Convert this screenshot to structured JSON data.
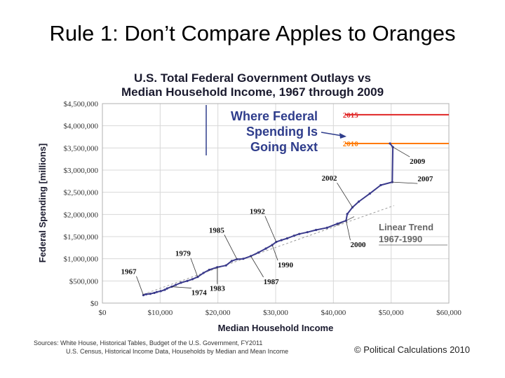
{
  "slide": {
    "title": "Rule 1: Don’t Compare Apples to Oranges"
  },
  "chart_data": {
    "type": "line",
    "title_line1": "U.S. Total Federal Government Outlays vs",
    "title_line2": "Median Household Income, 1967 through 2009",
    "xlabel": "Median Household Income",
    "ylabel": "Federal Spending [millions]",
    "xlim": [
      0,
      60000
    ],
    "ylim": [
      0,
      4500000
    ],
    "x_ticks": [
      0,
      10000,
      20000,
      30000,
      40000,
      50000,
      60000
    ],
    "x_tick_labels": [
      "$0",
      "$10,000",
      "$20,000",
      "$30,000",
      "$40,000",
      "$50,000",
      "$60,000"
    ],
    "y_ticks": [
      0,
      500000,
      1000000,
      1500000,
      2000000,
      2500000,
      3000000,
      3500000,
      4000000,
      4500000
    ],
    "y_tick_labels": [
      "$0",
      "$500,000",
      "$1,000,000",
      "$1,500,000",
      "$2,000,000",
      "$2,500,000",
      "$3,000,000",
      "$3,500,000",
      "$4,000,000",
      "$4,500,000"
    ],
    "grid": true,
    "series": [
      {
        "color": "#3a3a8c",
        "points": [
          [
            7100,
            180000
          ],
          [
            7600,
            200000
          ],
          [
            8300,
            210000
          ],
          [
            9000,
            230000
          ],
          [
            9400,
            250000
          ],
          [
            10100,
            270000
          ],
          [
            10800,
            300000
          ],
          [
            11200,
            330000
          ],
          [
            12000,
            370000
          ],
          [
            12700,
            410000
          ],
          [
            13600,
            460000
          ],
          [
            14700,
            500000
          ],
          [
            15600,
            540000
          ],
          [
            16500,
            590000
          ],
          [
            17500,
            680000
          ],
          [
            18500,
            750000
          ],
          [
            19900,
            810000
          ],
          [
            21400,
            850000
          ],
          [
            22400,
            950000
          ],
          [
            23300,
            990000
          ],
          [
            24400,
            1000000
          ],
          [
            25700,
            1060000
          ],
          [
            27000,
            1140000
          ],
          [
            28300,
            1230000
          ],
          [
            29400,
            1310000
          ],
          [
            30100,
            1380000
          ],
          [
            31000,
            1420000
          ],
          [
            32000,
            1460000
          ],
          [
            33200,
            1520000
          ],
          [
            34100,
            1560000
          ],
          [
            35500,
            1600000
          ],
          [
            37000,
            1650000
          ],
          [
            38900,
            1700000
          ],
          [
            40700,
            1790000
          ],
          [
            42200,
            1860000
          ],
          [
            42400,
            2010000
          ],
          [
            43300,
            2160000
          ],
          [
            44400,
            2290000
          ],
          [
            46300,
            2470000
          ],
          [
            48200,
            2660000
          ],
          [
            50200,
            2730000
          ],
          [
            50300,
            3520000
          ],
          [
            49800,
            3600000
          ]
        ]
      }
    ],
    "linear_trend": {
      "label_line1": "Linear Trend",
      "label_line2": "1967-1990",
      "from": [
        7100,
        200000
      ],
      "to": [
        50500,
        2200000
      ],
      "color": "#999999"
    },
    "reference_lines": [
      {
        "label": "2015",
        "y": 4250000,
        "color": "#e02424"
      },
      {
        "label": "2010",
        "y": 3600000,
        "color": "#ff7a00"
      }
    ],
    "callout": {
      "lines": [
        "Where Federal",
        "Spending Is",
        "Going Next"
      ],
      "color": "#2f3d8c"
    },
    "annotations": [
      {
        "label": "1967",
        "x": 7100,
        "y": 180000
      },
      {
        "label": "1974",
        "x": 12000,
        "y": 370000
      },
      {
        "label": "1979",
        "x": 16500,
        "y": 590000
      },
      {
        "label": "1983",
        "x": 19900,
        "y": 810000
      },
      {
        "label": "1985",
        "x": 23300,
        "y": 990000
      },
      {
        "label": "1987",
        "x": 25700,
        "y": 1060000
      },
      {
        "label": "1990",
        "x": 29400,
        "y": 1310000
      },
      {
        "label": "1992",
        "x": 30100,
        "y": 1380000
      },
      {
        "label": "2000",
        "x": 42200,
        "y": 1860000
      },
      {
        "label": "2002",
        "x": 43300,
        "y": 2160000
      },
      {
        "label": "2007",
        "x": 50200,
        "y": 2730000
      },
      {
        "label": "2009",
        "x": 50300,
        "y": 3520000
      }
    ],
    "source_line1": "Sources: White House, Historical Tables, Budget of the U.S. Government, FY2011",
    "source_line2": "U.S. Census, Historical Income Data, Households by Median and Mean Income",
    "copyright": "© Political Calculations 2010"
  }
}
